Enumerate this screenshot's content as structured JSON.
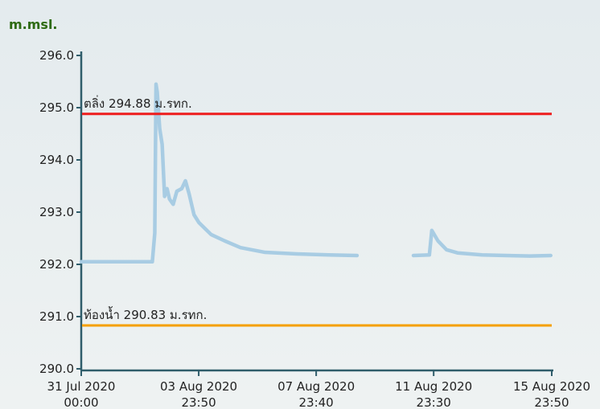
{
  "chart_data": {
    "type": "line",
    "y_label": "m.msl.",
    "x": [
      "2020-07-31 00:00",
      "2020-08-02 10:00",
      "2020-08-02 12:00",
      "2020-08-02 13:00",
      "2020-08-02 14:00",
      "2020-08-02 16:00",
      "2020-08-02 18:00",
      "2020-08-02 20:00",
      "2020-08-02 22:00",
      "2020-08-03 00:00",
      "2020-08-03 03:00",
      "2020-08-03 06:00",
      "2020-08-03 10:00",
      "2020-08-03 13:00",
      "2020-08-03 16:00",
      "2020-08-03 20:00",
      "2020-08-04 00:00",
      "2020-08-04 10:00",
      "2020-08-04 21:00",
      "2020-08-05 10:00",
      "2020-08-06 06:00",
      "2020-08-07 08:00",
      "2020-08-08 10:00",
      "2020-08-09 09:00",
      "2020-08-10 08:00",
      "2020-08-11 07:00",
      "2020-08-11 20:00",
      "2020-08-11 22:00",
      "2020-08-12 03:00",
      "2020-08-12 10:00",
      "2020-08-12 19:00",
      "2020-08-13 15:00",
      "2020-08-14 11:00",
      "2020-08-15 06:00",
      "2020-08-15 23:00"
    ],
    "series": [
      {
        "color": "#a8cce3",
        "values": [
          292.05,
          292.05,
          292.6,
          295.45,
          295.3,
          294.6,
          294.3,
          293.3,
          293.45,
          293.25,
          293.15,
          293.4,
          293.45,
          293.6,
          293.35,
          292.95,
          292.8,
          292.57,
          292.45,
          292.32,
          292.23,
          292.2,
          292.18,
          292.17,
          null,
          292.17,
          292.18,
          292.65,
          292.45,
          292.28,
          292.22,
          292.18,
          292.17,
          292.16,
          292.17
        ]
      }
    ],
    "reference_lines": [
      {
        "value": 294.88,
        "label": "ตลิ่ง 294.88 ม.รทก.",
        "color": "#ee1c1c"
      },
      {
        "value": 290.83,
        "label": "ท้องน้ำ 290.83 ม.รทก.",
        "color": "#f5a000"
      }
    ],
    "xlim": [
      "2020-07-31 00:00",
      "2020-08-15 23:50"
    ],
    "xticks": [
      {
        "value": "2020-07-31 00:00",
        "label": [
          "31 Jul 2020",
          "00:00"
        ]
      },
      {
        "value": "2020-08-03 23:50",
        "label": [
          "03 Aug 2020",
          "23:50"
        ]
      },
      {
        "value": "2020-08-07 23:40",
        "label": [
          "07 Aug 2020",
          "23:40"
        ]
      },
      {
        "value": "2020-08-11 23:30",
        "label": [
          "11 Aug 2020",
          "23:30"
        ]
      },
      {
        "value": "2020-08-15 23:50",
        "label": [
          "15 Aug 2020",
          "23:50"
        ]
      }
    ],
    "ylim": [
      290,
      296
    ],
    "yticks": [
      {
        "value": 290,
        "label": "290.0"
      },
      {
        "value": 291,
        "label": "291.0"
      },
      {
        "value": 292,
        "label": "292.0"
      },
      {
        "value": 293,
        "label": "293.0"
      },
      {
        "value": 294,
        "label": "294.0"
      },
      {
        "value": 295,
        "label": "295.0"
      },
      {
        "value": 296,
        "label": "296.0"
      }
    ]
  }
}
